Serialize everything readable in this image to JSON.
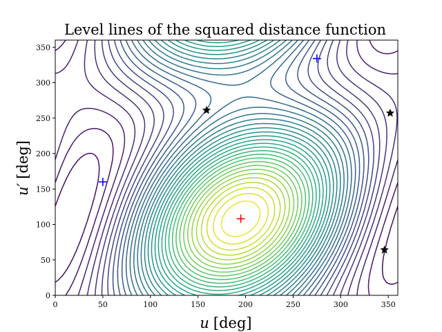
{
  "chart_data": {
    "type": "contour",
    "title": "Level lines of the squared distance function",
    "xlabel_var": "u",
    "xlabel_unit": "[deg]",
    "ylabel_var": "u′",
    "ylabel_unit": "[deg]",
    "xlim": [
      0,
      360
    ],
    "ylim": [
      0,
      360
    ],
    "xticks": [
      0,
      50,
      100,
      150,
      200,
      250,
      300,
      350
    ],
    "yticks": [
      0,
      50,
      100,
      150,
      200,
      250,
      300,
      350
    ],
    "colormap": "viridis",
    "grid": false,
    "maxima": [
      {
        "x": 195,
        "y": 108,
        "color": "#ff0000",
        "marker": "plus"
      }
    ],
    "minima": [
      {
        "x": 50,
        "y": 160,
        "color": "#0000ff",
        "marker": "plus"
      },
      {
        "x": 275,
        "y": 334,
        "color": "#0000ff",
        "marker": "plus"
      }
    ],
    "saddles": [
      {
        "x": 159,
        "y": 261,
        "color": "#000000",
        "marker": "star"
      },
      {
        "x": 352,
        "y": 257,
        "color": "#000000",
        "marker": "star"
      },
      {
        "x": 346,
        "y": 64,
        "color": "#000000",
        "marker": "star"
      }
    ]
  }
}
